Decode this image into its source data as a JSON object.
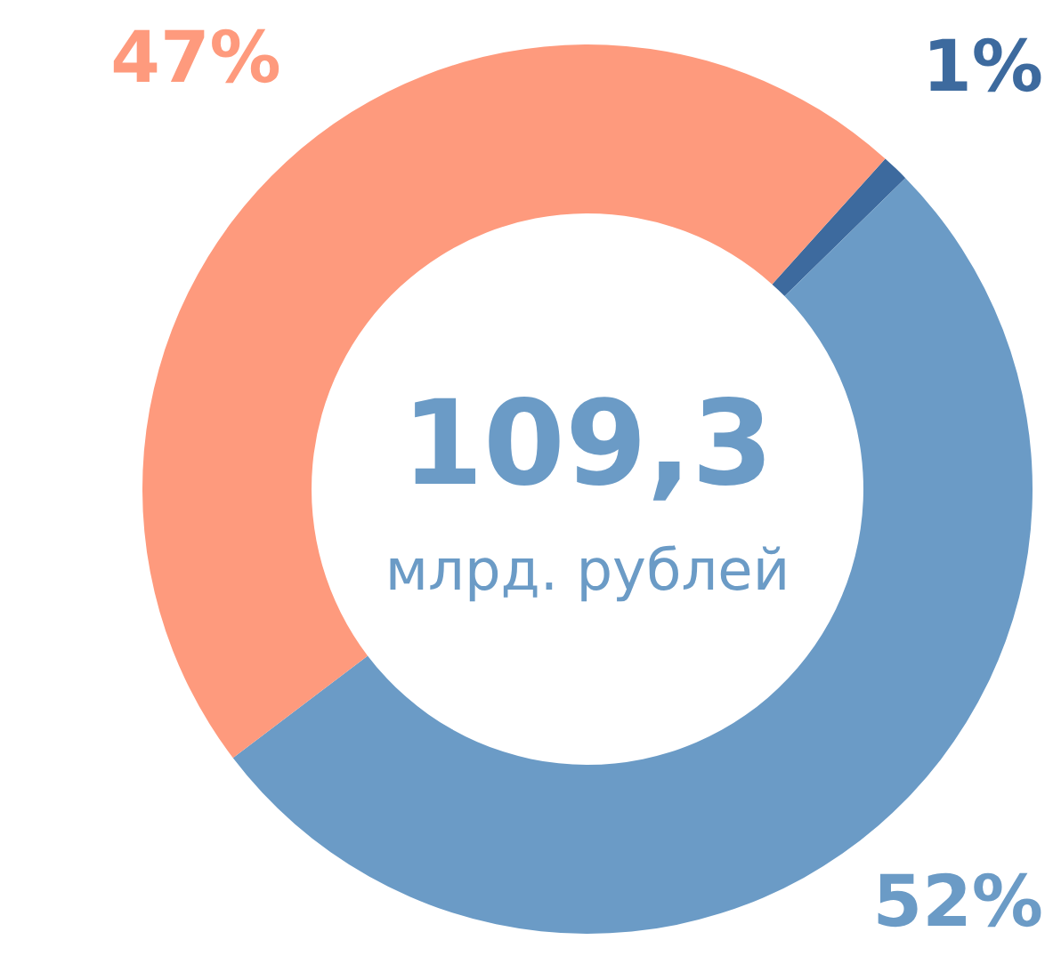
{
  "chart_data": {
    "type": "donut",
    "categories": [
      null,
      null,
      null
    ],
    "values": [
      1,
      52,
      47
    ],
    "colors": [
      "#3d6a9e",
      "#6b9bc6",
      "#fe9a7d"
    ],
    "value_labels": [
      "1%",
      "52%",
      "47%"
    ],
    "annotations": [
      "109,3",
      "млрд. рублей"
    ],
    "legend": false
  }
}
